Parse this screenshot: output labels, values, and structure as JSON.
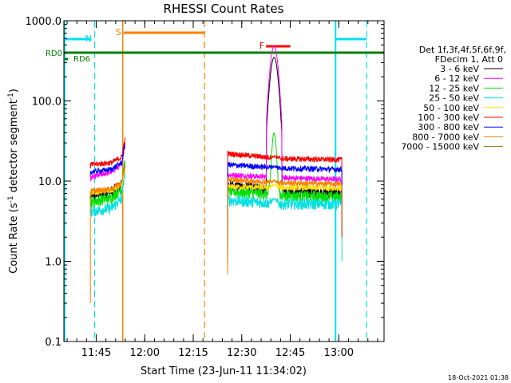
{
  "chart_data": {
    "type": "line",
    "title": "RHESSI Count Rates",
    "xlabel": "Start Time (23-Jun-11 11:34:02)",
    "ylabel_main": "Count Rate (s",
    "ylabel_sup1": "-1",
    "ylabel_mid": " detector segment",
    "ylabel_sup2": "-1",
    "ylabel_end": ")",
    "y_scale": "log",
    "ylim": [
      0.1,
      1000
    ],
    "xlim_minutes": [
      695.0,
      794.0
    ],
    "x_ticks": [
      {
        "t": 705,
        "label": "11:45"
      },
      {
        "t": 720,
        "label": "12:00"
      },
      {
        "t": 735,
        "label": "12:15"
      },
      {
        "t": 750,
        "label": "12:30"
      },
      {
        "t": 765,
        "label": "12:45"
      },
      {
        "t": 780,
        "label": "13:00"
      }
    ],
    "y_ticks": [
      {
        "v": 0.1,
        "label": "0.1"
      },
      {
        "v": 1,
        "label": "1.0"
      },
      {
        "v": 10,
        "label": "10.0"
      },
      {
        "v": 100,
        "label": "100.0"
      },
      {
        "v": 1000,
        "label": "1000.0"
      }
    ],
    "legend_header": [
      "Det 1f,3f,4f,5f,6f,9f,",
      "FDecim 1, Att 0"
    ],
    "series": [
      {
        "name": "3 - 6 keV",
        "color": "#000000",
        "seg1": [
          6.5,
          7.5,
          9,
          16
        ],
        "seg2": [
          9,
          7.5,
          7.2
        ],
        "peak": 350
      },
      {
        "name": "6 - 12 keV",
        "color": "#ff00ff",
        "seg1": [
          11,
          13,
          16,
          30
        ],
        "seg2": [
          12,
          11,
          10.5
        ],
        "peak": 480
      },
      {
        "name": "12 - 25 keV",
        "color": "#00e000",
        "seg1": [
          5.5,
          6.2,
          8,
          18
        ],
        "seg2": [
          7.5,
          6.6,
          6.4
        ],
        "peak": 40
      },
      {
        "name": "25 - 50 keV",
        "color": "#00e0e0",
        "seg1": [
          4.2,
          4.6,
          6,
          14
        ],
        "seg2": [
          5.8,
          5.2,
          5.2
        ],
        "peak": 6
      },
      {
        "name": "50 - 100 keV",
        "color": "#ffe000",
        "seg1": [
          7.2,
          7.6,
          9,
          14
        ],
        "seg2": [
          8.5,
          8.3,
          8.2
        ],
        "peak": 9
      },
      {
        "name": "100 - 300 keV",
        "color": "#ff0000",
        "seg1": [
          16,
          17,
          20,
          34
        ],
        "seg2": [
          22,
          19,
          18.5
        ],
        "peak": 20
      },
      {
        "name": "300 - 800 keV",
        "color": "#0000ff",
        "seg1": [
          13,
          14,
          17,
          30
        ],
        "seg2": [
          16,
          14.5,
          14
        ],
        "peak": 15
      },
      {
        "name": "800 - 7000 keV",
        "color": "#ff8000",
        "seg1": [
          7.5,
          8,
          9.5,
          16
        ],
        "seg2": [
          10.5,
          9.5,
          9.2
        ],
        "peak": 10
      },
      {
        "name": "7000 - 15000 keV",
        "color": "#8b7300",
        "seg1": [],
        "seg2": [],
        "peak": 0
      }
    ],
    "markers": {
      "N_label": "N",
      "S_label": "S",
      "F_label": "F",
      "RD0_label": "RD0",
      "RD6_label": "RD6"
    },
    "colors": {
      "axis": "#000000",
      "night": "#00e0f0",
      "saa": "#ff8000",
      "flare": "#ff0000",
      "decimation": "#008000"
    }
  },
  "footer": {
    "timestamp": "18-Oct-2021 01:38"
  }
}
